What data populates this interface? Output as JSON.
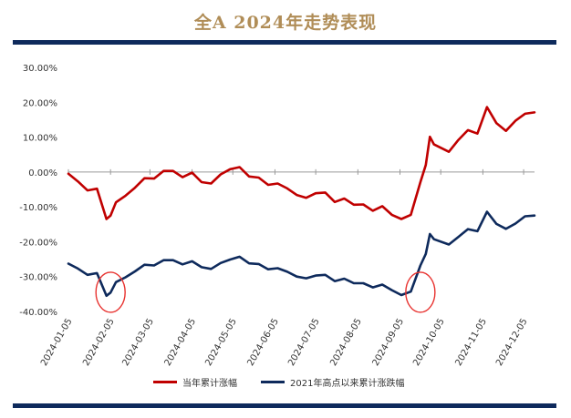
{
  "title": "全A 2024年走势表现",
  "colors": {
    "accent_gold": "#b08d57",
    "navy": "#0e2a5c",
    "series_red": "#c00000",
    "annotation_red": "#e8322f"
  },
  "chart_data": {
    "type": "line",
    "x": [
      "2024-01-05",
      "2024-01-12",
      "2024-01-19",
      "2024-01-26",
      "2024-02-02",
      "2024-02-05",
      "2024-02-09",
      "2024-02-16",
      "2024-02-23",
      "2024-03-01",
      "2024-03-08",
      "2024-03-15",
      "2024-03-22",
      "2024-03-29",
      "2024-04-05",
      "2024-04-12",
      "2024-04-19",
      "2024-04-26",
      "2024-05-03",
      "2024-05-10",
      "2024-05-17",
      "2024-05-24",
      "2024-05-31",
      "2024-06-07",
      "2024-06-14",
      "2024-06-21",
      "2024-06-28",
      "2024-07-05",
      "2024-07-12",
      "2024-07-19",
      "2024-07-26",
      "2024-08-02",
      "2024-08-09",
      "2024-08-16",
      "2024-08-23",
      "2024-08-30",
      "2024-09-06",
      "2024-09-13",
      "2024-09-20",
      "2024-09-24",
      "2024-09-27",
      "2024-09-30",
      "2024-10-11",
      "2024-10-18",
      "2024-10-25",
      "2024-11-01",
      "2024-11-08",
      "2024-11-15",
      "2024-11-22",
      "2024-11-29",
      "2024-12-06",
      "2024-12-13"
    ],
    "series": [
      {
        "name": "当年累计涨幅",
        "color": "#c00000",
        "values": [
          -0.5,
          -2.7,
          -5.3,
          -4.8,
          -13.5,
          -12.5,
          -8.7,
          -6.8,
          -4.5,
          -1.8,
          -1.9,
          0.3,
          0.3,
          -1.5,
          -0.2,
          -2.9,
          -3.3,
          -0.7,
          0.8,
          1.4,
          -1.3,
          -1.6,
          -3.7,
          -3.3,
          -4.7,
          -6.6,
          -7.4,
          -6.1,
          -5.9,
          -8.6,
          -7.6,
          -9.4,
          -9.3,
          -11.1,
          -9.8,
          -12.3,
          -13.5,
          -12.3,
          -2.9,
          2.0,
          10.1,
          7.9,
          5.8,
          9.2,
          12.0,
          11.0,
          18.6,
          14.0,
          11.8,
          14.7,
          16.7,
          17.1
        ]
      },
      {
        "name": "2021年高点以来累计涨跌幅",
        "color": "#0e2a5c",
        "values": [
          -26.3,
          -27.7,
          -29.5,
          -29.0,
          -35.5,
          -34.6,
          -31.6,
          -30.2,
          -28.5,
          -26.6,
          -26.8,
          -25.3,
          -25.3,
          -26.5,
          -25.6,
          -27.3,
          -27.8,
          -26.1,
          -25.1,
          -24.3,
          -26.2,
          -26.4,
          -27.9,
          -27.6,
          -28.6,
          -30.0,
          -30.5,
          -29.7,
          -29.5,
          -31.3,
          -30.6,
          -31.9,
          -31.9,
          -33.1,
          -32.3,
          -33.9,
          -35.3,
          -34.3,
          -26.8,
          -23.5,
          -17.8,
          -19.3,
          -20.8,
          -18.6,
          -16.4,
          -17.0,
          -11.4,
          -14.9,
          -16.3,
          -14.8,
          -12.7,
          -12.5
        ]
      }
    ],
    "x_tick_labels": [
      "2024-01-05",
      "2024-02-05",
      "2024-03-05",
      "2024-04-05",
      "2024-05-05",
      "2024-06-05",
      "2024-07-05",
      "2024-08-05",
      "2024-09-05",
      "2024-10-05",
      "2024-11-05",
      "2024-12-05"
    ],
    "y_tick_labels": [
      "30.00%",
      "20.00%",
      "10.00%",
      "0.00%",
      "-10.00%",
      "-20.00%",
      "-30.00%",
      "-40.00%"
    ],
    "ylim": [
      -40,
      30
    ],
    "grid": false,
    "legend_position": "bottom",
    "annotations": [
      {
        "type": "ellipse",
        "x": "2024-02-05",
        "y": -34.5,
        "color": "#e8322f"
      },
      {
        "type": "ellipse",
        "x": "2024-09-20",
        "y": -34.5,
        "color": "#e8322f"
      }
    ]
  }
}
